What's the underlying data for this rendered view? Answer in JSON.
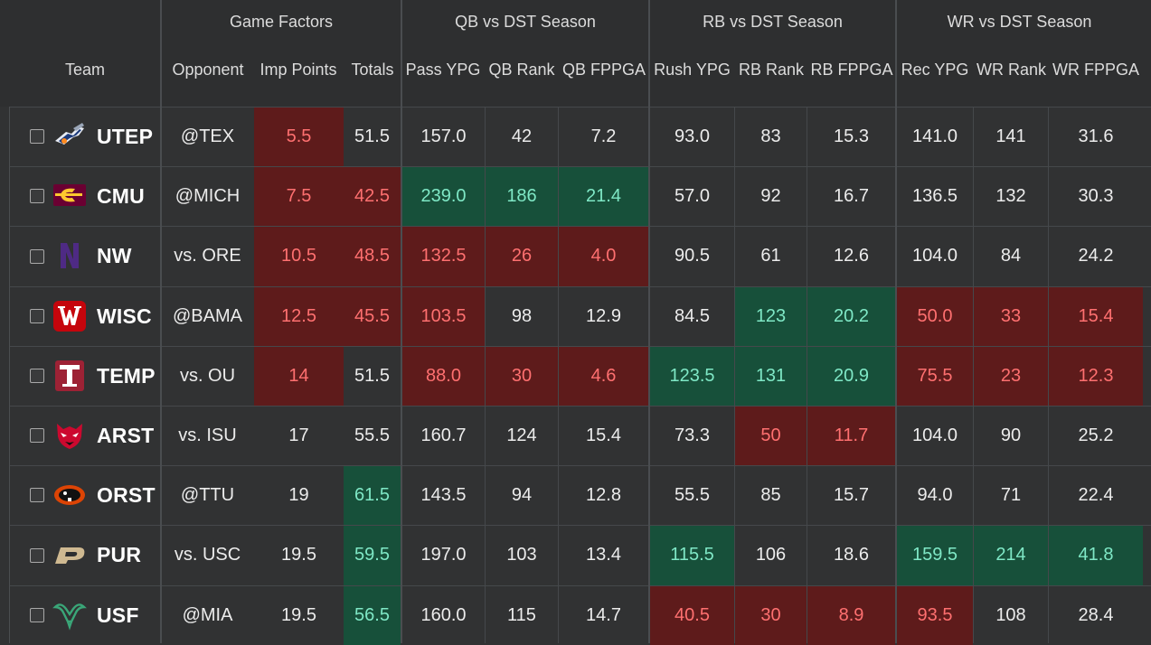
{
  "headers": {
    "groups": {
      "game_factors": "Game Factors",
      "qb": "QB vs DST Season",
      "rb": "RB vs DST Season",
      "wr": "WR vs DST Season"
    },
    "columns": {
      "team": "Team",
      "opponent": "Opponent",
      "imp_points": "Imp Points",
      "totals": "Totals",
      "pass_ypg": "Pass YPG",
      "qb_rank": "QB Rank",
      "qb_fppga": "QB FPPGA",
      "rush_ypg": "Rush YPG",
      "rb_rank": "RB Rank",
      "rb_fppga": "RB FPPGA",
      "rec_ypg": "Rec YPG",
      "wr_rank": "WR Rank",
      "wr_fppga": "WR FPPGA"
    }
  },
  "colors": {
    "red_bg": "#5e1b1b",
    "red_text": "#ff7070",
    "green_bg": "#17503a",
    "green_text": "#7fe8c6"
  },
  "rows": [
    {
      "team": "UTEP",
      "logo_icon": "utep-miner-icon",
      "opponent": "@TEX",
      "imp_points": "5.5",
      "totals": "51.5",
      "pass_ypg": "157.0",
      "qb_rank": "42",
      "qb_fppga": "7.2",
      "rush_ypg": "93.0",
      "rb_rank": "83",
      "rb_fppga": "15.3",
      "rec_ypg": "141.0",
      "wr_rank": "141",
      "wr_fppga": "31.6",
      "hl": {
        "imp_points": "red"
      }
    },
    {
      "team": "CMU",
      "logo_icon": "cmu-c-icon",
      "opponent": "@MICH",
      "imp_points": "7.5",
      "totals": "42.5",
      "pass_ypg": "239.0",
      "qb_rank": "186",
      "qb_fppga": "21.4",
      "rush_ypg": "57.0",
      "rb_rank": "92",
      "rb_fppga": "16.7",
      "rec_ypg": "136.5",
      "wr_rank": "132",
      "wr_fppga": "30.3",
      "hl": {
        "imp_points": "red",
        "totals": "red",
        "pass_ypg": "green",
        "qb_rank": "green",
        "qb_fppga": "green"
      }
    },
    {
      "team": "NW",
      "logo_icon": "nw-n-icon",
      "opponent": "vs. ORE",
      "imp_points": "10.5",
      "totals": "48.5",
      "pass_ypg": "132.5",
      "qb_rank": "26",
      "qb_fppga": "4.0",
      "rush_ypg": "90.5",
      "rb_rank": "61",
      "rb_fppga": "12.6",
      "rec_ypg": "104.0",
      "wr_rank": "84",
      "wr_fppga": "24.2",
      "hl": {
        "imp_points": "red",
        "totals": "red",
        "pass_ypg": "red",
        "qb_rank": "red",
        "qb_fppga": "red"
      }
    },
    {
      "team": "WISC",
      "logo_icon": "wisc-w-icon",
      "opponent": "@BAMA",
      "imp_points": "12.5",
      "totals": "45.5",
      "pass_ypg": "103.5",
      "qb_rank": "98",
      "qb_fppga": "12.9",
      "rush_ypg": "84.5",
      "rb_rank": "123",
      "rb_fppga": "20.2",
      "rec_ypg": "50.0",
      "wr_rank": "33",
      "wr_fppga": "15.4",
      "hl": {
        "imp_points": "red",
        "totals": "red",
        "pass_ypg": "red",
        "rb_rank": "green",
        "rb_fppga": "green",
        "rec_ypg": "red",
        "wr_rank": "red",
        "wr_fppga": "red"
      }
    },
    {
      "team": "TEMP",
      "logo_icon": "temp-t-icon",
      "opponent": "vs. OU",
      "imp_points": "14",
      "totals": "51.5",
      "pass_ypg": "88.0",
      "qb_rank": "30",
      "qb_fppga": "4.6",
      "rush_ypg": "123.5",
      "rb_rank": "131",
      "rb_fppga": "20.9",
      "rec_ypg": "75.5",
      "wr_rank": "23",
      "wr_fppga": "12.3",
      "hl": {
        "imp_points": "red",
        "pass_ypg": "red",
        "qb_rank": "red",
        "qb_fppga": "red",
        "rush_ypg": "green",
        "rb_rank": "green",
        "rb_fppga": "green",
        "rec_ypg": "red",
        "wr_rank": "red",
        "wr_fppga": "red"
      }
    },
    {
      "team": "ARST",
      "logo_icon": "arst-wolf-icon",
      "opponent": "vs. ISU",
      "imp_points": "17",
      "totals": "55.5",
      "pass_ypg": "160.7",
      "qb_rank": "124",
      "qb_fppga": "15.4",
      "rush_ypg": "73.3",
      "rb_rank": "50",
      "rb_fppga": "11.7",
      "rec_ypg": "104.0",
      "wr_rank": "90",
      "wr_fppga": "25.2",
      "hl": {
        "rb_rank": "red",
        "rb_fppga": "red"
      }
    },
    {
      "team": "ORST",
      "logo_icon": "orst-beaver-icon",
      "opponent": "@TTU",
      "imp_points": "19",
      "totals": "61.5",
      "pass_ypg": "143.5",
      "qb_rank": "94",
      "qb_fppga": "12.8",
      "rush_ypg": "55.5",
      "rb_rank": "85",
      "rb_fppga": "15.7",
      "rec_ypg": "94.0",
      "wr_rank": "71",
      "wr_fppga": "22.4",
      "hl": {
        "totals": "green"
      }
    },
    {
      "team": "PUR",
      "logo_icon": "pur-p-icon",
      "opponent": "vs. USC",
      "imp_points": "19.5",
      "totals": "59.5",
      "pass_ypg": "197.0",
      "qb_rank": "103",
      "qb_fppga": "13.4",
      "rush_ypg": "115.5",
      "rb_rank": "106",
      "rb_fppga": "18.6",
      "rec_ypg": "159.5",
      "wr_rank": "214",
      "wr_fppga": "41.8",
      "hl": {
        "totals": "green",
        "rush_ypg": "green",
        "rec_ypg": "green",
        "wr_rank": "green",
        "wr_fppga": "green"
      }
    },
    {
      "team": "USF",
      "logo_icon": "usf-bull-icon",
      "opponent": "@MIA",
      "imp_points": "19.5",
      "totals": "56.5",
      "pass_ypg": "160.0",
      "qb_rank": "115",
      "qb_fppga": "14.7",
      "rush_ypg": "40.5",
      "rb_rank": "30",
      "rb_fppga": "8.9",
      "rec_ypg": "93.5",
      "wr_rank": "108",
      "wr_fppga": "28.4",
      "hl": {
        "totals": "green",
        "rush_ypg": "red",
        "rb_rank": "red",
        "rb_fppga": "red",
        "rec_ypg": "red"
      }
    }
  ]
}
